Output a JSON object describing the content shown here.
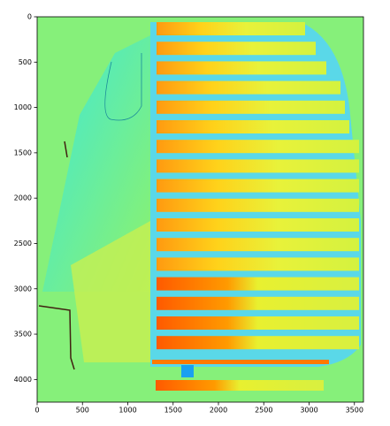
{
  "chart_data": {
    "type": "image",
    "xlim": [
      0,
      3600
    ],
    "ylim": [
      4250,
      0
    ],
    "xticks": [
      0,
      500,
      1000,
      1500,
      2000,
      2500,
      3000,
      3500
    ],
    "yticks": [
      0,
      500,
      1000,
      1500,
      2000,
      2500,
      3000,
      3500,
      4000
    ]
  }
}
